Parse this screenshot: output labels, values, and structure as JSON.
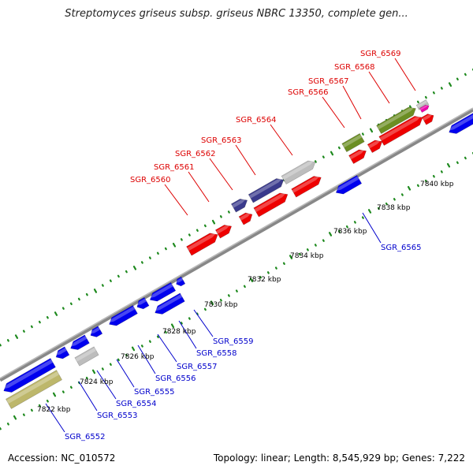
{
  "title": "Streptomyces griseus subsp. griseus NBRC 13350, complete gen...",
  "accession": "Accession: NC_010572",
  "topology": "Topology: linear; Length: 8,545,929 bp; Genes: 7,222",
  "colors": {
    "backbone": "#888888",
    "dots": "#228b22",
    "label_top": "#dd0000",
    "label_bottom": "#0000cc",
    "red": "#ee0000",
    "blue": "#0000ee",
    "navy": "#3a3a8c",
    "olive": "#6b8e23",
    "khaki": "#bdb76b",
    "gray": "#bdbdbd",
    "pink": "#ee00aa"
  },
  "ticks": [
    "7822 kbp",
    "7824 kbp",
    "7826 kbp",
    "7828 kbp",
    "7830 kbp",
    "7832 kbp",
    "7834 kbp",
    "7836 kbp",
    "7838 kbp",
    "7840 kbp"
  ],
  "top_labels": [
    "SGR_6560",
    "SGR_6561",
    "SGR_6562",
    "SGR_6563",
    "SGR_6564",
    "SGR_6566",
    "SGR_6567",
    "SGR_6568",
    "SGR_6569"
  ],
  "bottom_labels": [
    "SGR_6552",
    "SGR_6553",
    "SGR_6554",
    "SGR_6555",
    "SGR_6556",
    "SGR_6557",
    "SGR_6558",
    "SGR_6559",
    "SGR_6565"
  ]
}
